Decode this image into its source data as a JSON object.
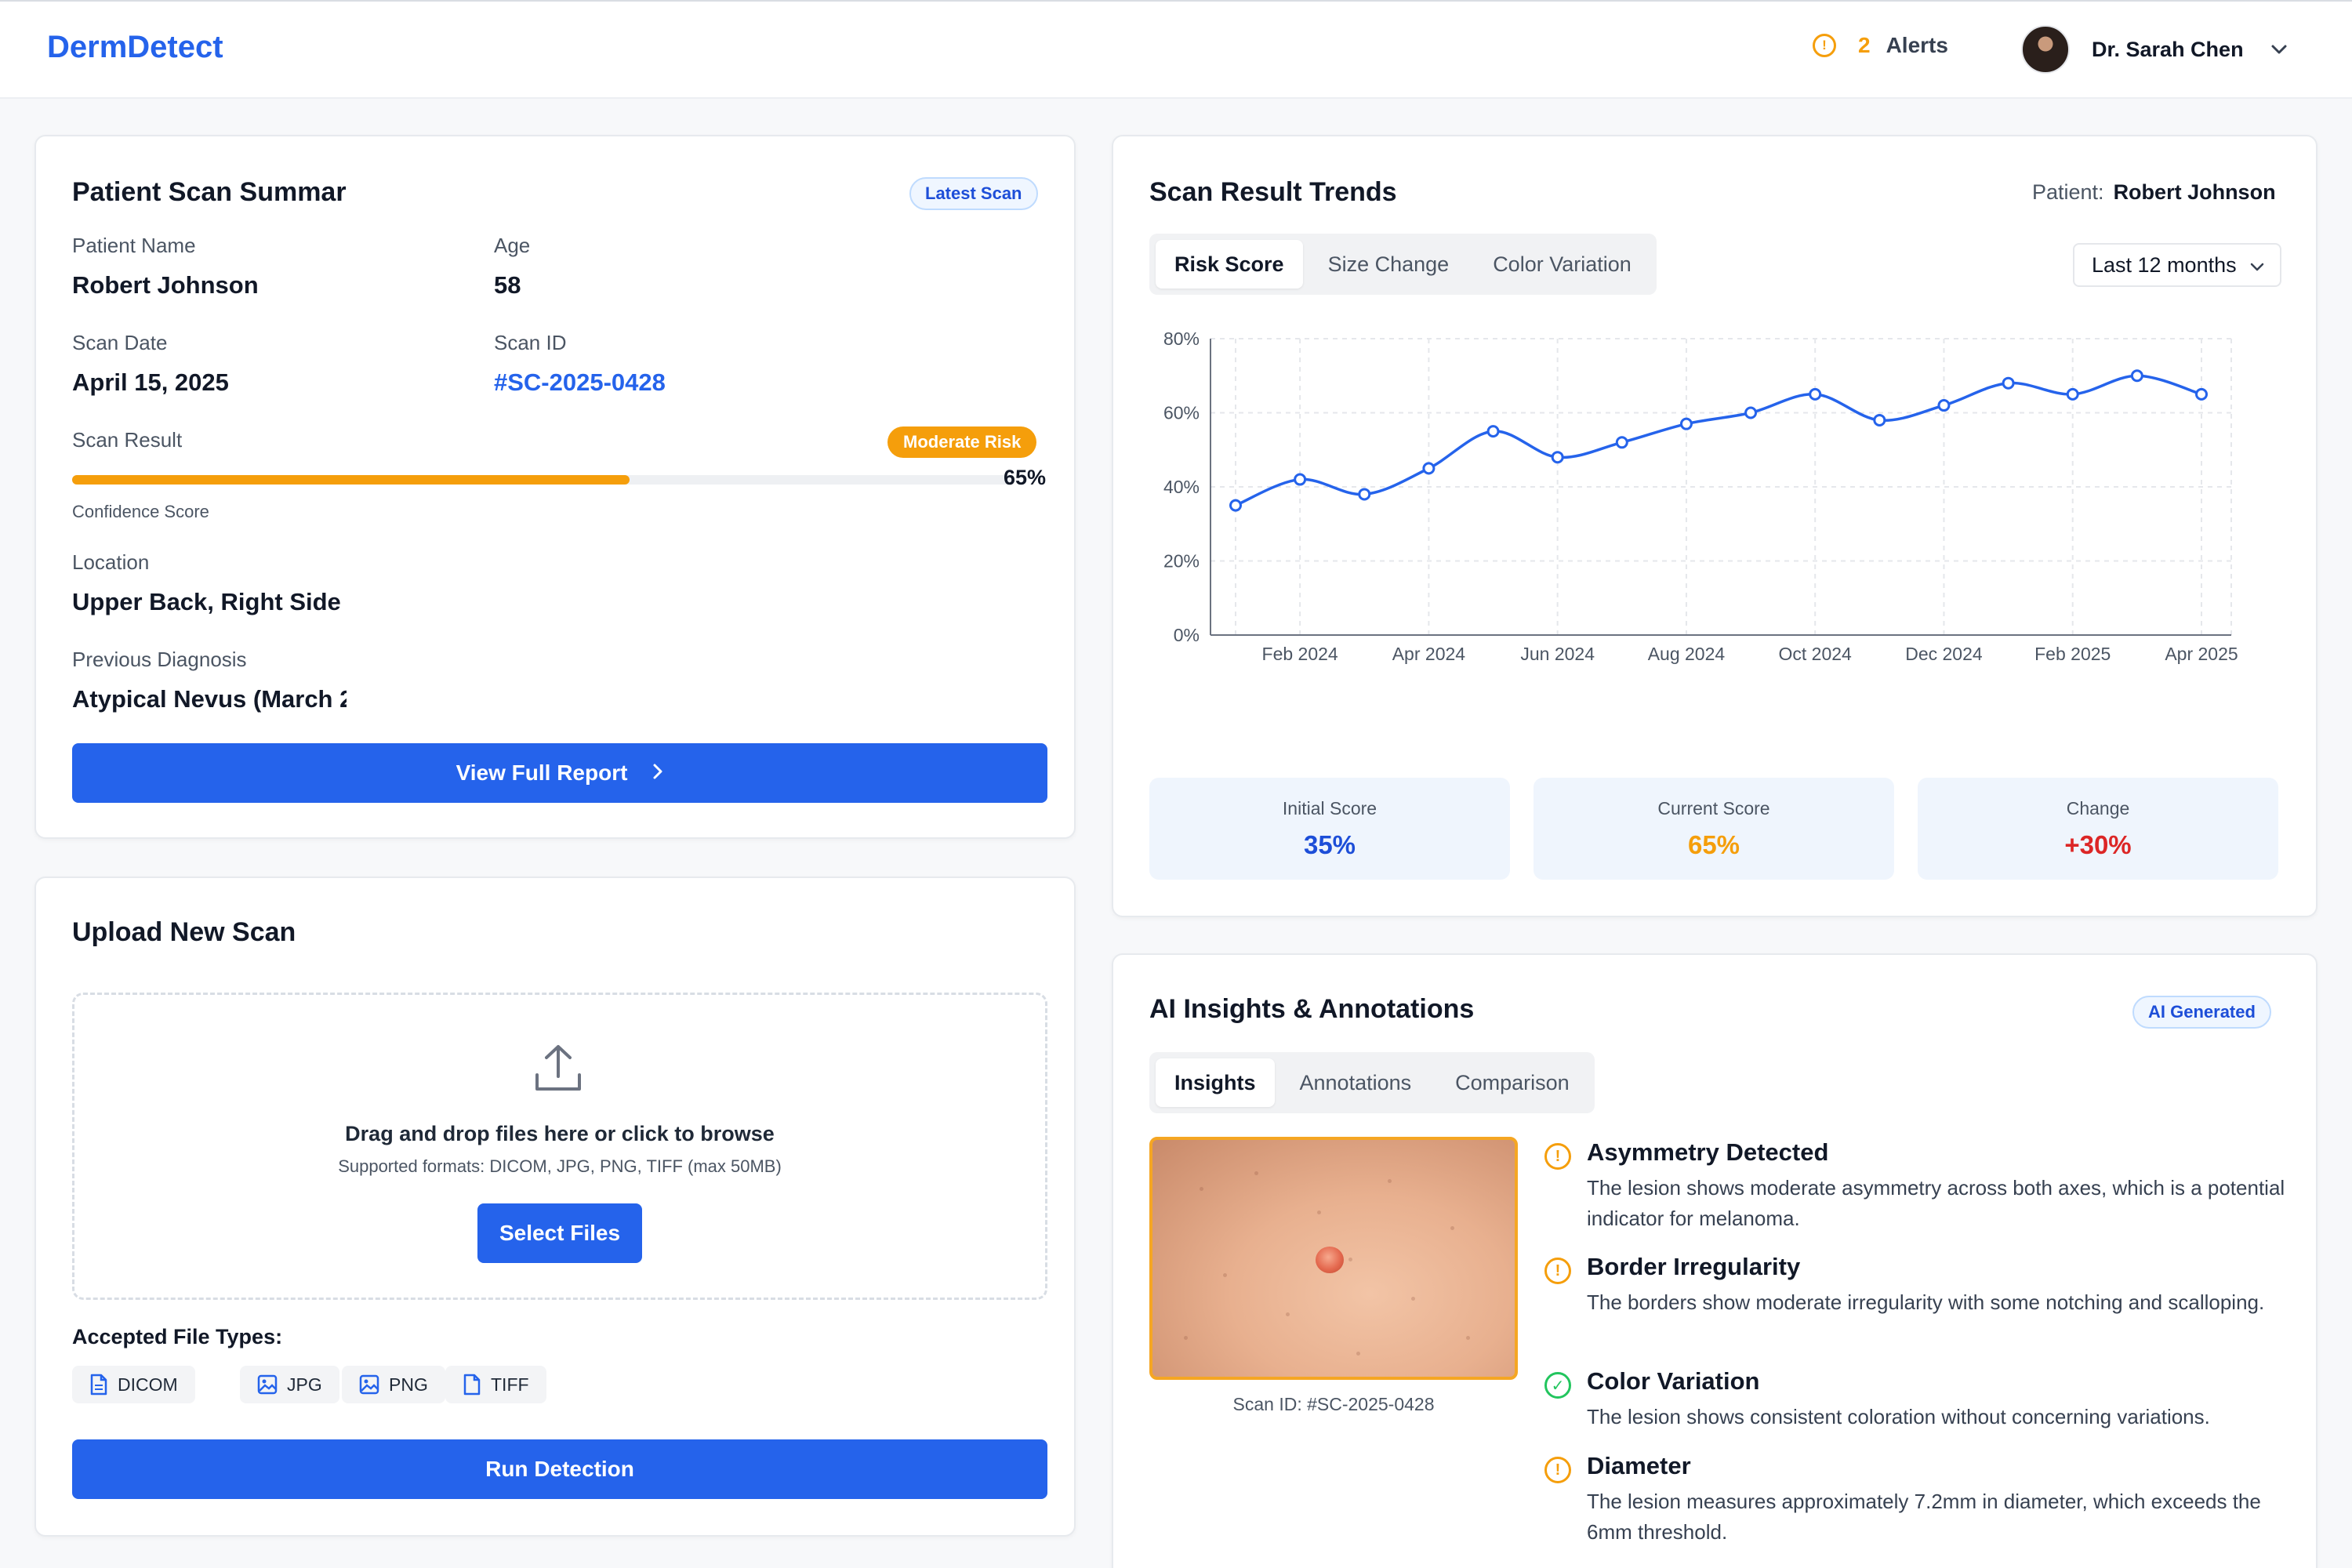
{
  "header": {
    "brand": "DermDetect",
    "alerts_count": "2",
    "alerts_label": "Alerts",
    "user_name": "Dr. Sarah Chen"
  },
  "summary": {
    "title": "Patient Scan Summar",
    "badge": "Latest Scan",
    "patient_name_label": "Patient Name",
    "patient_name": "Robert Johnson",
    "age_label": "Age",
    "age": "58",
    "scan_date_label": "Scan Date",
    "scan_date": "April 15, 2025",
    "scan_id_label": "Scan ID",
    "scan_id": "#SC-2025-0428",
    "scan_result_label": "Scan Result",
    "risk_badge": "Moderate Risk",
    "confidence_value": 0.65,
    "confidence_pct": "65%",
    "confidence_label": "Confidence Score",
    "location_label": "Location",
    "location": "Upper Back, Right Side",
    "prev_diag_label": "Previous Diagnosis",
    "prev_diag": "Atypical Nevus (March 2",
    "report_button": "View Full Report"
  },
  "upload": {
    "title": "Upload New Scan",
    "drop_main": "Drag and drop files here or click to browse",
    "drop_sub": "Supported formats: DICOM, JPG, PNG, TIFF (max 50MB)",
    "select_button": "Select Files",
    "file_types_label": "Accepted File Types:",
    "file_types": [
      "DICOM",
      "JPG",
      "PNG",
      "TIFF"
    ],
    "run_button": "Run Detection"
  },
  "trends": {
    "title": "Scan Result Trends",
    "patient_label": "Patient:",
    "patient_name": "Robert Johnson",
    "tabs": [
      "Risk Score",
      "Size Change",
      "Color Variation"
    ],
    "active_tab": "Risk Score",
    "range": "Last 12 months",
    "stats": {
      "initial_label": "Initial Score",
      "initial_value": "35%",
      "current_label": "Current Score",
      "current_value": "65%",
      "change_label": "Change",
      "change_value": "+30%"
    },
    "colors": {
      "line": "#2563eb",
      "initial": "#1d4ed8",
      "current": "#f59e0b",
      "change": "#dc2626"
    }
  },
  "chart_data": {
    "type": "line",
    "x": [
      "Jan 2024",
      "Feb 2024",
      "Mar 2024",
      "Apr 2024",
      "May 2024",
      "Jun 2024",
      "Jul 2024",
      "Aug 2024",
      "Sep 2024",
      "Oct 2024",
      "Nov 2024",
      "Dec 2024",
      "Jan 2025",
      "Feb 2025",
      "Mar 2025",
      "Apr 2025"
    ],
    "x_ticks": [
      "Feb 2024",
      "Apr 2024",
      "Jun 2024",
      "Aug 2024",
      "Oct 2024",
      "Dec 2024",
      "Feb 2025",
      "Apr 2025"
    ],
    "series": [
      {
        "values": [
          35,
          42,
          38,
          45,
          55,
          48,
          52,
          57,
          60,
          65,
          58,
          62,
          68,
          65,
          70,
          65
        ]
      }
    ],
    "ylim": [
      0,
      80
    ],
    "y_ticks": [
      "0%",
      "20%",
      "40%",
      "60%",
      "80%"
    ],
    "grid": true
  },
  "insights": {
    "title": "AI Insights & Annotations",
    "badge": "AI Generated",
    "tabs": [
      "Insights",
      "Annotations",
      "Comparison"
    ],
    "active_tab": "Insights",
    "image_caption": "Scan ID: #SC-2025-0428",
    "items": [
      {
        "title": "Asymmetry Detected",
        "text": "The lesion shows moderate asymmetry across both axes, which is a potential indicator for melanoma.",
        "icon": "warning-icon"
      },
      {
        "title": "Border Irregularity",
        "text": "The borders show moderate irregularity with some notching and scalloping.",
        "icon": "warning-icon"
      },
      {
        "title": "Color Variation",
        "text": "The lesion shows consistent coloration without concerning variations.",
        "icon": "check-icon"
      },
      {
        "title": "Diameter",
        "text": "The lesion measures approximately 7.2mm in diameter, which exceeds the 6mm threshold.",
        "icon": "warning-icon"
      }
    ]
  }
}
